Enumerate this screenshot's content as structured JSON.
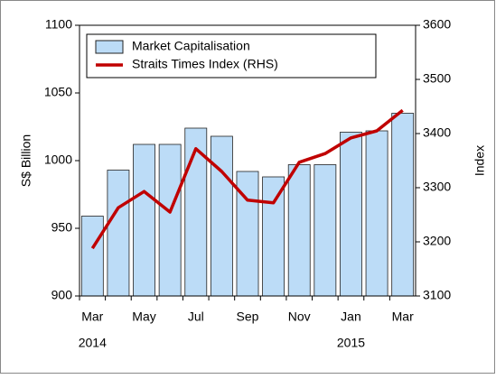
{
  "chart_data": {
    "type": "bar",
    "categories": [
      "Mar",
      null,
      "May",
      null,
      "Jul",
      null,
      "Sep",
      null,
      "Nov",
      null,
      "Jan",
      null,
      "Mar"
    ],
    "years": [
      "2014",
      null,
      null,
      null,
      null,
      null,
      null,
      null,
      null,
      null,
      "2015",
      null,
      null
    ],
    "ylabel": "S$ Billion",
    "y2label": "Index",
    "ylim": [
      900,
      1100
    ],
    "yticks": [
      900,
      950,
      1000,
      1050,
      1100
    ],
    "y2lim": [
      3100,
      3600
    ],
    "y2ticks": [
      3100,
      3200,
      3300,
      3400,
      3500,
      3600
    ],
    "legend": "top-left",
    "series": [
      {
        "name": "Market Capitalisation",
        "type": "bar",
        "color": "#bcdcf7",
        "values": [
          959,
          993,
          1012,
          1012,
          1024,
          1018,
          992,
          988,
          997,
          997,
          1021,
          1022,
          1035
        ]
      },
      {
        "name": "Straits Times Index (RHS)",
        "type": "line",
        "axis": "y2",
        "color": "#c00000",
        "values": [
          3188,
          3263,
          3293,
          3255,
          3372,
          3330,
          3277,
          3272,
          3347,
          3363,
          3392,
          3405,
          3443
        ]
      }
    ]
  }
}
